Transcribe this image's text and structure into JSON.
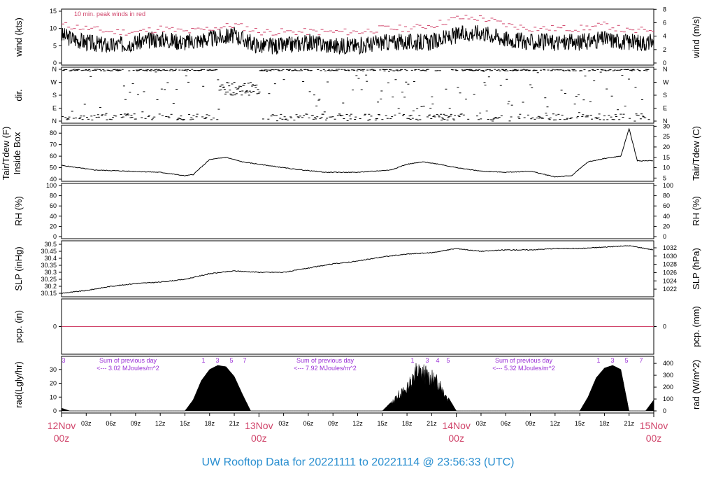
{
  "title": "UW Rooftop Data for 20221111  to  20221114 @ 23:56:33  (UTC)",
  "colors": {
    "peak": "#d0446a",
    "date": "#d0446a",
    "note": "#9a2fd6",
    "title": "#2a8fd0",
    "precip_line": "#d0446a"
  },
  "chart_data": {
    "type": "line",
    "x_range_hours": [
      0,
      72
    ],
    "x_ticks": [
      "03z",
      "06z",
      "09z",
      "12z",
      "15z",
      "18z",
      "21z",
      "03z",
      "06z",
      "09z",
      "12z",
      "15z",
      "18z",
      "21z",
      "03z",
      "06z",
      "09z",
      "12z",
      "15z",
      "18z",
      "21z"
    ],
    "date_labels": [
      {
        "day": "12Nov",
        "hour": "00z"
      },
      {
        "day": "13Nov",
        "hour": "00z"
      },
      {
        "day": "14Nov",
        "hour": "00z"
      },
      {
        "day": "15Nov",
        "hour": "00z"
      }
    ],
    "panels": {
      "wind": {
        "ylabel": "wind (kts)",
        "ylabel_right": "wind (m/s)",
        "note": "10 min. peak winds in red",
        "ylim": [
          0,
          15
        ],
        "yticks": [
          0,
          5,
          10,
          15
        ],
        "yticks_right": [
          0,
          2,
          4,
          6,
          8
        ],
        "x": [
          0,
          3,
          6,
          9,
          12,
          15,
          18,
          21,
          24,
          27,
          30,
          33,
          36,
          39,
          42,
          45,
          48,
          51,
          54,
          57,
          60,
          63,
          66,
          69,
          72
        ],
        "values": [
          8,
          6,
          5,
          6,
          7,
          6,
          7,
          8,
          5,
          5,
          6,
          5,
          5,
          6,
          6,
          6,
          8,
          9,
          7,
          6,
          6,
          6,
          7,
          6,
          6
        ],
        "peak_values": [
          11,
          10,
          9,
          9,
          10,
          9,
          10,
          11,
          9,
          9,
          9,
          9,
          9,
          10,
          10,
          11,
          13,
          13,
          11,
          10,
          10,
          10,
          11,
          9,
          10
        ]
      },
      "direction": {
        "ylabel": "dir.",
        "yticks": [
          "N",
          "E",
          "S",
          "W",
          "N"
        ],
        "yticks_right": [
          "N",
          "E",
          "S",
          "W",
          "N"
        ]
      },
      "temperature": {
        "ylabel": [
          "Tair/Tdew (F)",
          "Inside Box"
        ],
        "ylabel_right": "Tair/Tdew (C)",
        "ylim": [
          40,
          85
        ],
        "yticks": [
          40,
          50,
          60,
          70,
          80
        ],
        "yticks_right": [
          5,
          10,
          15,
          20,
          25,
          30
        ],
        "x": [
          0,
          4,
          8,
          12,
          15,
          16,
          18,
          20,
          22,
          24,
          28,
          32,
          36,
          40,
          42,
          44,
          46,
          48,
          51,
          54,
          57,
          60,
          62,
          64,
          66,
          68,
          69,
          70,
          72
        ],
        "values": [
          52,
          48,
          47,
          46,
          43,
          44,
          57,
          59,
          55,
          53,
          49,
          46,
          46,
          48,
          53,
          55,
          53,
          50,
          47,
          46,
          47,
          42,
          43,
          55,
          58,
          60,
          84,
          56,
          56
        ]
      },
      "humidity": {
        "ylabel": "RH (%)",
        "ylabel_right": "RH (%)",
        "ylim": [
          0,
          100
        ],
        "yticks": [
          0,
          20,
          40,
          60,
          80,
          100
        ],
        "yticks_right": [
          0,
          20,
          40,
          60,
          80,
          100
        ]
      },
      "pressure": {
        "ylabel": "SLP (inHg)",
        "ylabel_right": "SLP (hPa)",
        "ylim": [
          30.14,
          30.51
        ],
        "yticks": [
          30.15,
          30.2,
          30.25,
          30.3,
          30.35,
          30.4,
          30.45,
          30.5
        ],
        "yticks_right": [
          1022,
          1024,
          1026,
          1028,
          1030,
          1032
        ],
        "x": [
          0,
          3,
          6,
          9,
          12,
          15,
          18,
          21,
          24,
          27,
          30,
          33,
          36,
          39,
          42,
          45,
          48,
          51,
          54,
          57,
          60,
          63,
          66,
          69,
          72
        ],
        "values": [
          30.15,
          30.17,
          30.2,
          30.22,
          30.23,
          30.25,
          30.29,
          30.31,
          30.3,
          30.3,
          30.33,
          30.36,
          30.38,
          30.41,
          30.43,
          30.44,
          30.47,
          30.45,
          30.46,
          30.46,
          30.47,
          30.47,
          30.48,
          30.49,
          30.46
        ]
      },
      "precipitation": {
        "ylabel": "pcp. (in)",
        "ylabel_right": "pcp. (mm)",
        "ylim": [
          -1,
          1
        ],
        "yticks": [
          0
        ],
        "yticks_right": [
          0
        ],
        "x": [
          0,
          72
        ],
        "values": [
          0,
          0
        ]
      },
      "radiation": {
        "ylabel": "rad(Lgly/hr)",
        "ylabel_right": "rad (W/m^2)",
        "ylim": [
          0,
          38
        ],
        "yticks": [
          0,
          10,
          20,
          30
        ],
        "yticks_right": [
          0,
          100,
          200,
          300,
          400
        ],
        "daily_notes": [
          {
            "line1": "Sum of previous day",
            "line2": "<--- 3.02 MJoules/m^2"
          },
          {
            "line1": "Sum of previous day",
            "line2": "<--- 7.92 MJoules/m^2"
          },
          {
            "line1": "Sum of previous day",
            "line2": "<--- 5.32 MJoules/m^2"
          }
        ],
        "uv_markers": [
          "3",
          "1",
          "3",
          "5",
          "7",
          "1",
          "3",
          "4",
          "5",
          "1",
          "3",
          "5",
          "7"
        ],
        "x": [
          0,
          1,
          15,
          16,
          17,
          18,
          19,
          20,
          21,
          22,
          23,
          39,
          40,
          41,
          42,
          43,
          44,
          45,
          46,
          47,
          48,
          63,
          64,
          65,
          66,
          67,
          68,
          69,
          71,
          72
        ],
        "values": [
          2,
          0,
          0,
          8,
          22,
          30,
          33,
          32,
          25,
          12,
          0,
          0,
          6,
          15,
          20,
          36,
          35,
          30,
          25,
          10,
          0,
          0,
          10,
          24,
          31,
          33,
          30,
          0,
          0,
          8
        ]
      }
    }
  }
}
